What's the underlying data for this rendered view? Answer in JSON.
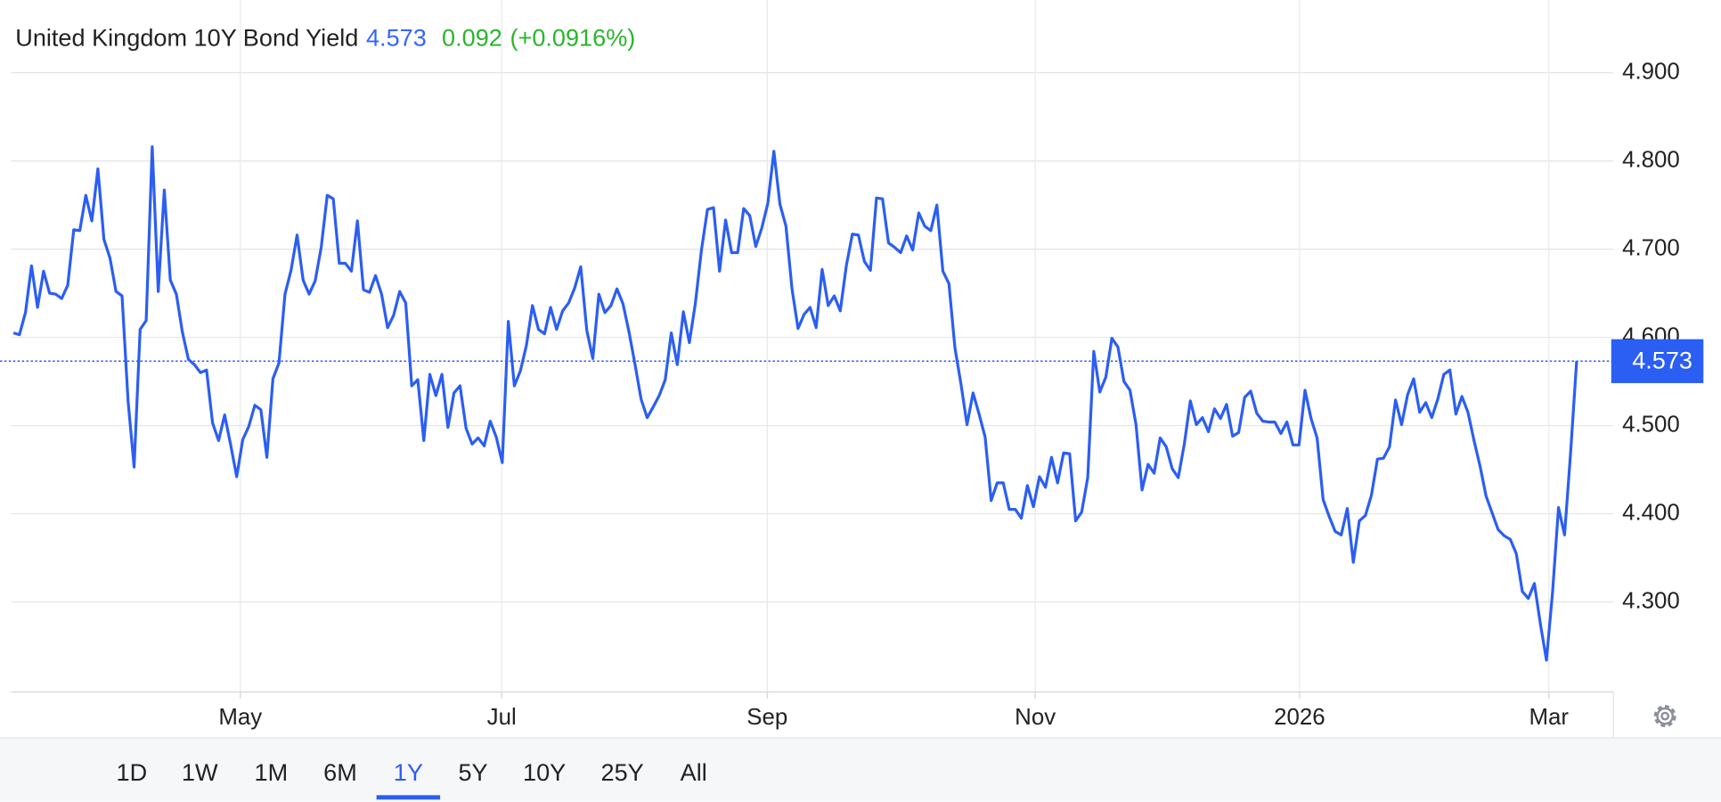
{
  "chart_data": {
    "type": "line",
    "title": "United Kingdom 10Y Bond Yield",
    "last_value": 4.573,
    "change": 0.092,
    "change_percent": {
      "value": 0.0916,
      "label": "(+0.0916%)"
    },
    "color": "#2b5ef2",
    "grid": true,
    "ylim": [
      4.198,
      4.9
    ],
    "yticks": [
      {
        "value": 4.3,
        "label": "4.300"
      },
      {
        "value": 4.4,
        "label": "4.400"
      },
      {
        "value": 4.5,
        "label": "4.500"
      },
      {
        "value": 4.6,
        "label": "4.600"
      },
      {
        "value": 4.7,
        "label": "4.700"
      },
      {
        "value": 4.8,
        "label": "4.800"
      },
      {
        "value": 4.9,
        "label": "4.900"
      }
    ],
    "xlim": [
      -0.4,
      265.1
    ],
    "xticks": [
      {
        "value": 37.6,
        "label": "May"
      },
      {
        "value": 80.9,
        "label": "Jul"
      },
      {
        "value": 124.9,
        "label": "Sep"
      },
      {
        "value": 169.3,
        "label": "Nov"
      },
      {
        "value": 213.1,
        "label": "2026"
      },
      {
        "value": 254.4,
        "label": "Mar"
      }
    ],
    "values": [
      4.605,
      4.603,
      4.628,
      4.681,
      4.634,
      4.675,
      4.65,
      4.649,
      4.644,
      4.659,
      4.722,
      4.721,
      4.761,
      4.732,
      4.791,
      4.711,
      4.69,
      4.652,
      4.647,
      4.528,
      4.453,
      4.609,
      4.619,
      4.816,
      4.652,
      4.767,
      4.665,
      4.649,
      4.606,
      4.575,
      4.569,
      4.56,
      4.563,
      4.503,
      4.483,
      4.512,
      4.478,
      4.442,
      4.484,
      4.499,
      4.523,
      4.518,
      4.464,
      4.553,
      4.571,
      4.649,
      4.676,
      4.716,
      4.665,
      4.649,
      4.664,
      4.702,
      4.761,
      4.757,
      4.684,
      4.684,
      4.675,
      4.732,
      4.654,
      4.651,
      4.67,
      4.649,
      4.611,
      4.625,
      4.652,
      4.639,
      4.545,
      4.552,
      4.483,
      4.558,
      4.534,
      4.558,
      4.498,
      4.537,
      4.545,
      4.497,
      4.479,
      4.486,
      4.477,
      4.505,
      4.487,
      4.458,
      4.618,
      4.545,
      4.562,
      4.591,
      4.636,
      4.609,
      4.604,
      4.634,
      4.609,
      4.63,
      4.639,
      4.656,
      4.68,
      4.608,
      4.576,
      4.649,
      4.628,
      4.636,
      4.655,
      4.638,
      4.606,
      4.569,
      4.53,
      4.509,
      4.521,
      4.534,
      4.552,
      4.605,
      4.569,
      4.629,
      4.594,
      4.639,
      4.699,
      4.745,
      4.747,
      4.675,
      4.733,
      4.696,
      4.696,
      4.746,
      4.738,
      4.703,
      4.724,
      4.752,
      4.811,
      4.751,
      4.726,
      4.655,
      4.61,
      4.626,
      4.634,
      4.611,
      4.677,
      4.636,
      4.647,
      4.63,
      4.681,
      4.717,
      4.716,
      4.686,
      4.676,
      4.758,
      4.757,
      4.707,
      4.702,
      4.696,
      4.715,
      4.699,
      4.741,
      4.726,
      4.721,
      4.75,
      4.675,
      4.661,
      4.588,
      4.547,
      4.501,
      4.537,
      4.513,
      4.487,
      4.415,
      4.435,
      4.435,
      4.405,
      4.405,
      4.395,
      4.432,
      4.408,
      4.442,
      4.43,
      4.464,
      4.435,
      4.469,
      4.468,
      4.392,
      4.402,
      4.441,
      4.584,
      4.538,
      4.555,
      4.599,
      4.589,
      4.55,
      4.54,
      4.501,
      4.427,
      4.456,
      4.446,
      4.486,
      4.476,
      4.451,
      4.441,
      4.479,
      4.528,
      4.501,
      4.509,
      4.493,
      4.519,
      4.508,
      4.524,
      4.488,
      4.492,
      4.532,
      4.539,
      4.514,
      4.505,
      4.504,
      4.504,
      4.491,
      4.504,
      4.478,
      4.478,
      4.54,
      4.508,
      4.486,
      4.416,
      4.397,
      4.38,
      4.376,
      4.406,
      4.345,
      4.392,
      4.398,
      4.421,
      4.462,
      4.463,
      4.476,
      4.529,
      4.501,
      4.535,
      4.553,
      4.515,
      4.526,
      4.509,
      4.53,
      4.558,
      4.563,
      4.513,
      4.533,
      4.515,
      4.483,
      4.454,
      4.42,
      4.401,
      4.382,
      4.375,
      4.371,
      4.355,
      4.312,
      4.304,
      4.321,
      4.275,
      4.234,
      4.31,
      4.407,
      4.376,
      4.469,
      4.573
    ]
  },
  "range_selector": {
    "options": [
      "1D",
      "1W",
      "1M",
      "6M",
      "1Y",
      "5Y",
      "10Y",
      "25Y",
      "All"
    ],
    "selected": 4
  }
}
